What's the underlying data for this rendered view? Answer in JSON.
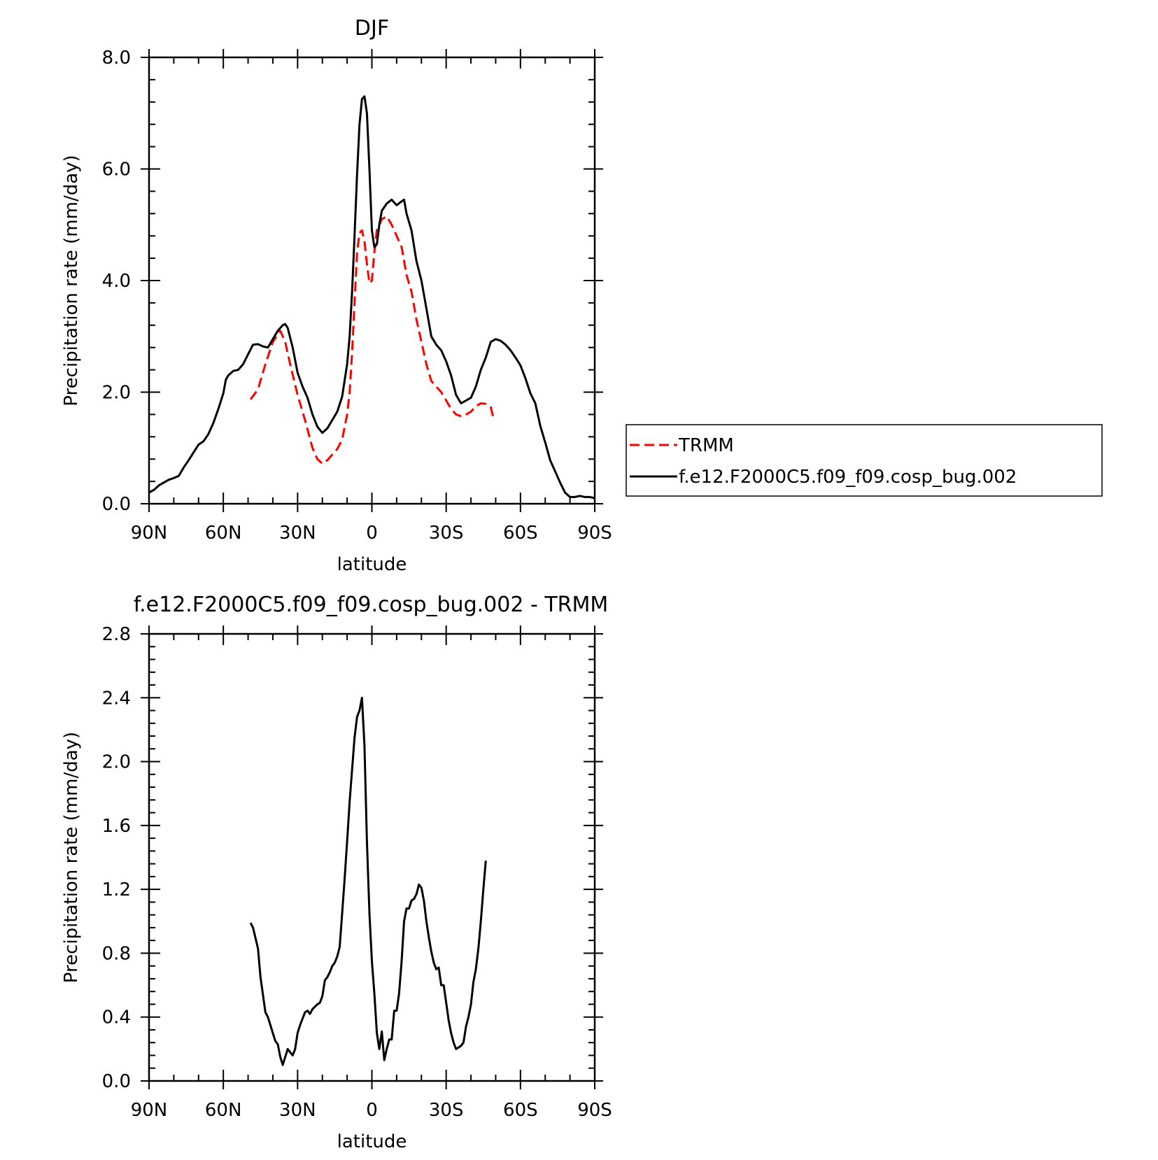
{
  "chart_data": [
    {
      "type": "line",
      "title": "DJF",
      "xlabel": "latitude",
      "ylabel": "Precipitation rate (mm/day)",
      "xlim": [
        90,
        -90
      ],
      "ylim": [
        0,
        8
      ],
      "x_ticks": [
        {
          "v": 90,
          "label": "90N"
        },
        {
          "v": 60,
          "label": "60N"
        },
        {
          "v": 30,
          "label": "30N"
        },
        {
          "v": 0,
          "label": "0"
        },
        {
          "v": -30,
          "label": "30S"
        },
        {
          "v": -60,
          "label": "60S"
        },
        {
          "v": -90,
          "label": "90S"
        }
      ],
      "y_ticks": [
        {
          "v": 0,
          "label": "0.0"
        },
        {
          "v": 2,
          "label": "2.0"
        },
        {
          "v": 4,
          "label": "4.0"
        },
        {
          "v": 6,
          "label": "6.0"
        },
        {
          "v": 8,
          "label": "8.0"
        }
      ],
      "legend": {
        "position": "right"
      },
      "series": [
        {
          "name": "TRMM",
          "color": "#ff0000",
          "dash": true,
          "points": [
            [
              49,
              1.87
            ],
            [
              46,
              2.05
            ],
            [
              43,
              2.5
            ],
            [
              40,
              2.9
            ],
            [
              37,
              3.1
            ],
            [
              35,
              2.9
            ],
            [
              33,
              2.5
            ],
            [
              30,
              1.95
            ],
            [
              27,
              1.5
            ],
            [
              24,
              1.0
            ],
            [
              22,
              0.8
            ],
            [
              20,
              0.72
            ],
            [
              18,
              0.78
            ],
            [
              16,
              0.88
            ],
            [
              14,
              0.98
            ],
            [
              12,
              1.15
            ],
            [
              10,
              1.6
            ],
            [
              9,
              2.0
            ],
            [
              8,
              2.7
            ],
            [
              7,
              3.6
            ],
            [
              6,
              4.5
            ],
            [
              5,
              4.85
            ],
            [
              4,
              4.9
            ],
            [
              3,
              4.7
            ],
            [
              2,
              4.3
            ],
            [
              1,
              3.95
            ],
            [
              0,
              4.0
            ],
            [
              -1,
              4.5
            ],
            [
              -2,
              4.9
            ],
            [
              -4,
              5.1
            ],
            [
              -6,
              5.15
            ],
            [
              -8,
              5.0
            ],
            [
              -10,
              4.8
            ],
            [
              -12,
              4.6
            ],
            [
              -14,
              4.1
            ],
            [
              -16,
              3.8
            ],
            [
              -18,
              3.3
            ],
            [
              -20,
              2.9
            ],
            [
              -22,
              2.5
            ],
            [
              -24,
              2.2
            ],
            [
              -26,
              2.1
            ],
            [
              -28,
              2.0
            ],
            [
              -30,
              1.85
            ],
            [
              -32,
              1.7
            ],
            [
              -34,
              1.6
            ],
            [
              -36,
              1.57
            ],
            [
              -38,
              1.6
            ],
            [
              -40,
              1.65
            ],
            [
              -42,
              1.75
            ],
            [
              -44,
              1.8
            ],
            [
              -46,
              1.79
            ],
            [
              -48,
              1.73
            ],
            [
              -49,
              1.55
            ]
          ]
        },
        {
          "name": "f.e12.F2000C5.f09_f09.cosp_bug.002",
          "color": "#000000",
          "dash": false,
          "points": [
            [
              90,
              0.2
            ],
            [
              88,
              0.25
            ],
            [
              86,
              0.33
            ],
            [
              84,
              0.38
            ],
            [
              82,
              0.43
            ],
            [
              80,
              0.46
            ],
            [
              78,
              0.5
            ],
            [
              76,
              0.65
            ],
            [
              74,
              0.78
            ],
            [
              72,
              0.92
            ],
            [
              70,
              1.06
            ],
            [
              68,
              1.12
            ],
            [
              66,
              1.25
            ],
            [
              64,
              1.45
            ],
            [
              62,
              1.7
            ],
            [
              60,
              1.98
            ],
            [
              59,
              2.22
            ],
            [
              58,
              2.3
            ],
            [
              56,
              2.38
            ],
            [
              54,
              2.4
            ],
            [
              52,
              2.5
            ],
            [
              50,
              2.68
            ],
            [
              48,
              2.85
            ],
            [
              46,
              2.86
            ],
            [
              44,
              2.82
            ],
            [
              42,
              2.8
            ],
            [
              40,
              2.95
            ],
            [
              38,
              3.1
            ],
            [
              36,
              3.2
            ],
            [
              35,
              3.22
            ],
            [
              34,
              3.15
            ],
            [
              32,
              2.8
            ],
            [
              30,
              2.35
            ],
            [
              28,
              2.1
            ],
            [
              26,
              1.9
            ],
            [
              24,
              1.6
            ],
            [
              22,
              1.38
            ],
            [
              20,
              1.27
            ],
            [
              18,
              1.35
            ],
            [
              16,
              1.5
            ],
            [
              14,
              1.65
            ],
            [
              12,
              1.92
            ],
            [
              10,
              2.5
            ],
            [
              9,
              3.0
            ],
            [
              8,
              3.8
            ],
            [
              7,
              4.8
            ],
            [
              6,
              5.9
            ],
            [
              5,
              6.8
            ],
            [
              4,
              7.25
            ],
            [
              3,
              7.3
            ],
            [
              2,
              7.0
            ],
            [
              1,
              6.0
            ],
            [
              0,
              4.9
            ],
            [
              -1,
              4.6
            ],
            [
              -2,
              4.65
            ],
            [
              -3,
              5.0
            ],
            [
              -4,
              5.25
            ],
            [
              -6,
              5.38
            ],
            [
              -8,
              5.45
            ],
            [
              -10,
              5.35
            ],
            [
              -12,
              5.42
            ],
            [
              -13,
              5.45
            ],
            [
              -14,
              5.2
            ],
            [
              -16,
              4.9
            ],
            [
              -18,
              4.35
            ],
            [
              -20,
              4.0
            ],
            [
              -22,
              3.5
            ],
            [
              -24,
              3.0
            ],
            [
              -26,
              2.85
            ],
            [
              -28,
              2.75
            ],
            [
              -30,
              2.55
            ],
            [
              -32,
              2.3
            ],
            [
              -34,
              1.95
            ],
            [
              -36,
              1.8
            ],
            [
              -38,
              1.85
            ],
            [
              -40,
              1.9
            ],
            [
              -42,
              2.1
            ],
            [
              -44,
              2.4
            ],
            [
              -46,
              2.62
            ],
            [
              -48,
              2.9
            ],
            [
              -50,
              2.95
            ],
            [
              -52,
              2.92
            ],
            [
              -54,
              2.85
            ],
            [
              -56,
              2.75
            ],
            [
              -58,
              2.62
            ],
            [
              -60,
              2.48
            ],
            [
              -62,
              2.25
            ],
            [
              -64,
              1.98
            ],
            [
              -66,
              1.8
            ],
            [
              -68,
              1.4
            ],
            [
              -70,
              1.1
            ],
            [
              -72,
              0.78
            ],
            [
              -74,
              0.58
            ],
            [
              -76,
              0.38
            ],
            [
              -78,
              0.2
            ],
            [
              -80,
              0.12
            ],
            [
              -82,
              0.12
            ],
            [
              -84,
              0.14
            ],
            [
              -86,
              0.12
            ],
            [
              -88,
              0.12
            ],
            [
              -90,
              0.1
            ]
          ]
        }
      ]
    },
    {
      "type": "line",
      "title": "f.e12.F2000C5.f09_f09.cosp_bug.002 - TRMM",
      "xlabel": "latitude",
      "ylabel": "Precipitation rate (mm/day)",
      "xlim": [
        90,
        -90
      ],
      "ylim": [
        0,
        2.8
      ],
      "x_ticks": [
        {
          "v": 90,
          "label": "90N"
        },
        {
          "v": 60,
          "label": "60N"
        },
        {
          "v": 30,
          "label": "30N"
        },
        {
          "v": 0,
          "label": "0"
        },
        {
          "v": -30,
          "label": "30S"
        },
        {
          "v": -60,
          "label": "60S"
        },
        {
          "v": -90,
          "label": "90S"
        }
      ],
      "y_ticks": [
        {
          "v": 0,
          "label": "0.0"
        },
        {
          "v": 0.4,
          "label": "0.4"
        },
        {
          "v": 0.8,
          "label": "0.8"
        },
        {
          "v": 1.2,
          "label": "1.2"
        },
        {
          "v": 1.6,
          "label": "1.6"
        },
        {
          "v": 2.0,
          "label": "2.0"
        },
        {
          "v": 2.4,
          "label": "2.4"
        },
        {
          "v": 2.8,
          "label": "2.8"
        }
      ],
      "series": [
        {
          "color": "#000000",
          "dash": false,
          "points": [
            [
              49,
              0.99
            ],
            [
              48,
              0.96
            ],
            [
              46,
              0.83
            ],
            [
              45,
              0.65
            ],
            [
              43,
              0.43
            ],
            [
              42,
              0.4
            ],
            [
              40,
              0.3
            ],
            [
              39,
              0.25
            ],
            [
              38,
              0.23
            ],
            [
              37,
              0.15
            ],
            [
              36,
              0.1
            ],
            [
              35,
              0.15
            ],
            [
              34,
              0.2
            ],
            [
              33,
              0.18
            ],
            [
              32,
              0.16
            ],
            [
              31,
              0.2
            ],
            [
              30,
              0.3
            ],
            [
              29,
              0.35
            ],
            [
              27,
              0.43
            ],
            [
              26,
              0.44
            ],
            [
              25,
              0.42
            ],
            [
              24,
              0.45
            ],
            [
              22,
              0.48
            ],
            [
              21,
              0.49
            ],
            [
              20,
              0.53
            ],
            [
              19,
              0.63
            ],
            [
              18,
              0.65
            ],
            [
              17,
              0.68
            ],
            [
              16,
              0.72
            ],
            [
              15,
              0.74
            ],
            [
              14,
              0.78
            ],
            [
              13,
              0.84
            ],
            [
              12,
              1.05
            ],
            [
              11,
              1.27
            ],
            [
              10,
              1.5
            ],
            [
              9,
              1.75
            ],
            [
              8,
              1.95
            ],
            [
              7,
              2.15
            ],
            [
              6,
              2.28
            ],
            [
              5,
              2.32
            ],
            [
              4,
              2.4
            ],
            [
              3,
              2.1
            ],
            [
              2,
              1.5
            ],
            [
              1,
              1.05
            ],
            [
              0,
              0.75
            ],
            [
              -1,
              0.55
            ],
            [
              -2,
              0.3
            ],
            [
              -3,
              0.2
            ],
            [
              -4,
              0.31
            ],
            [
              -5,
              0.13
            ],
            [
              -6,
              0.2
            ],
            [
              -7,
              0.26
            ],
            [
              -8,
              0.26
            ],
            [
              -9,
              0.44
            ],
            [
              -10,
              0.44
            ],
            [
              -11,
              0.55
            ],
            [
              -12,
              0.75
            ],
            [
              -13,
              1.0
            ],
            [
              -14,
              1.08
            ],
            [
              -15,
              1.08
            ],
            [
              -16,
              1.13
            ],
            [
              -17,
              1.14
            ],
            [
              -18,
              1.17
            ],
            [
              -19,
              1.23
            ],
            [
              -20,
              1.21
            ],
            [
              -21,
              1.13
            ],
            [
              -22,
              1.0
            ],
            [
              -23,
              0.9
            ],
            [
              -24,
              0.81
            ],
            [
              -25,
              0.74
            ],
            [
              -26,
              0.7
            ],
            [
              -27,
              0.71
            ],
            [
              -28,
              0.6
            ],
            [
              -29,
              0.6
            ],
            [
              -30,
              0.49
            ],
            [
              -31,
              0.38
            ],
            [
              -32,
              0.3
            ],
            [
              -33,
              0.24
            ],
            [
              -34,
              0.2
            ],
            [
              -35,
              0.21
            ],
            [
              -36,
              0.22
            ],
            [
              -37,
              0.24
            ],
            [
              -38,
              0.34
            ],
            [
              -39,
              0.4
            ],
            [
              -40,
              0.48
            ],
            [
              -41,
              0.62
            ],
            [
              -42,
              0.7
            ],
            [
              -43,
              0.83
            ],
            [
              -44,
              1.0
            ],
            [
              -45,
              1.2
            ],
            [
              -46,
              1.38
            ]
          ]
        }
      ]
    }
  ]
}
